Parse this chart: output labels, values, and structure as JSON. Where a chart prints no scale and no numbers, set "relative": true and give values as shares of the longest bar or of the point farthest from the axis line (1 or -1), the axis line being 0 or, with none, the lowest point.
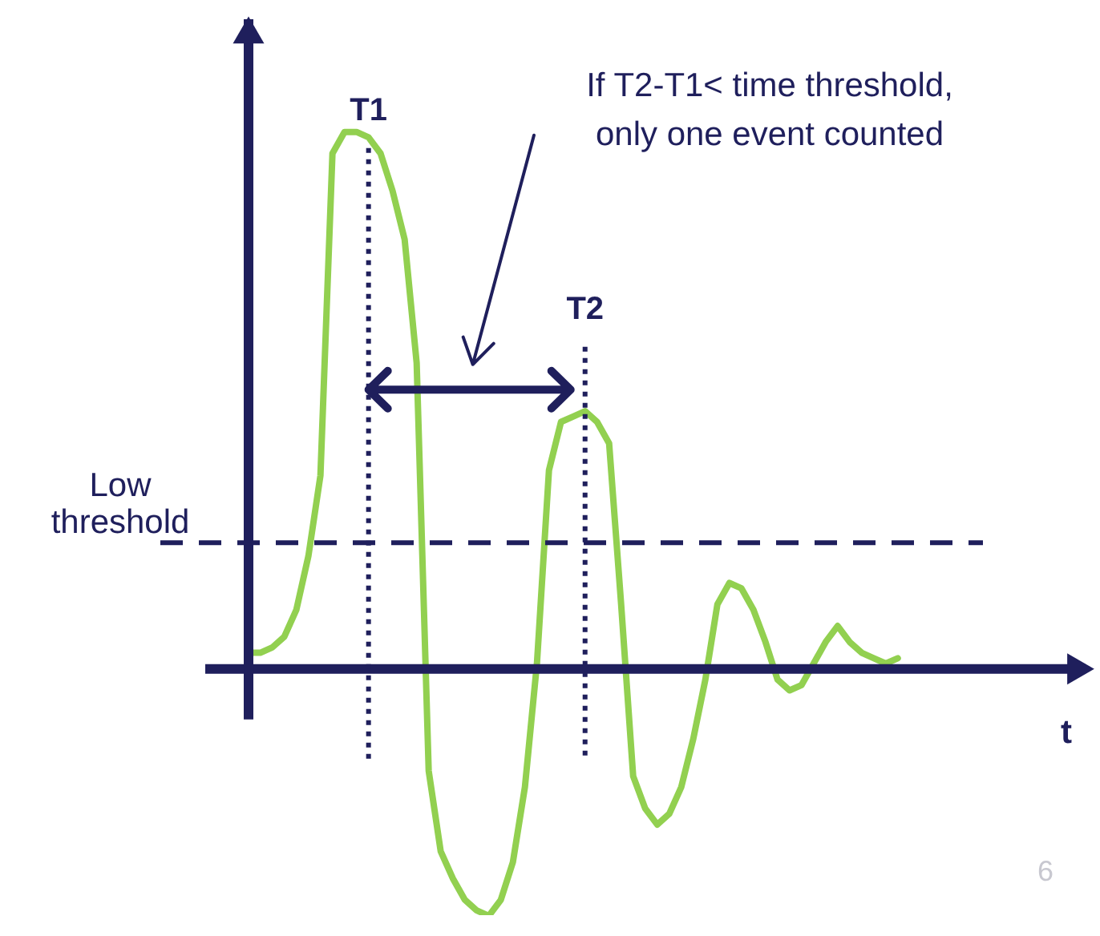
{
  "chart_data": {
    "type": "line",
    "relative": true,
    "xlabel": "t",
    "tick_labels": false,
    "categories": [
      null,
      null,
      null,
      null,
      null,
      null,
      null,
      null,
      null,
      null,
      null,
      null,
      null,
      null,
      null,
      null,
      null,
      null,
      null,
      null,
      null,
      null,
      null,
      null,
      null,
      null,
      null,
      null,
      null,
      null,
      null,
      null,
      null,
      null,
      null,
      null,
      null,
      null,
      null,
      null,
      null,
      null,
      null,
      null,
      null,
      null,
      null,
      null,
      null,
      null,
      null,
      null,
      null,
      null,
      null
    ],
    "series": [
      {
        "color": "#92d050",
        "values": [
          0.03,
          0.03,
          0.04,
          0.06,
          0.11,
          0.21,
          0.36,
          0.96,
          1.0,
          1.0,
          0.99,
          0.96,
          0.89,
          0.8,
          0.57,
          -0.19,
          -0.34,
          -0.39,
          -0.43,
          -0.45,
          -0.46,
          -0.43,
          -0.36,
          -0.22,
          0.01,
          0.37,
          0.46,
          0.47,
          0.48,
          0.46,
          0.42,
          0.12,
          -0.2,
          -0.26,
          -0.29,
          -0.27,
          -0.22,
          -0.13,
          -0.02,
          0.12,
          0.16,
          0.15,
          0.11,
          0.05,
          -0.02,
          -0.04,
          -0.03,
          0.01,
          0.05,
          0.08,
          0.05,
          0.03,
          0.02,
          0.01,
          0.02
        ]
      }
    ],
    "ref_lines": [
      {
        "axis": "y",
        "value": 0.235,
        "label": "Low threshold",
        "line_style": "dashed",
        "color": "#1f1f5c"
      }
    ],
    "annotations": [
      "If T2-T1< time threshold,",
      "only one event counted",
      "6",
      "T1",
      "T2"
    ]
  }
}
